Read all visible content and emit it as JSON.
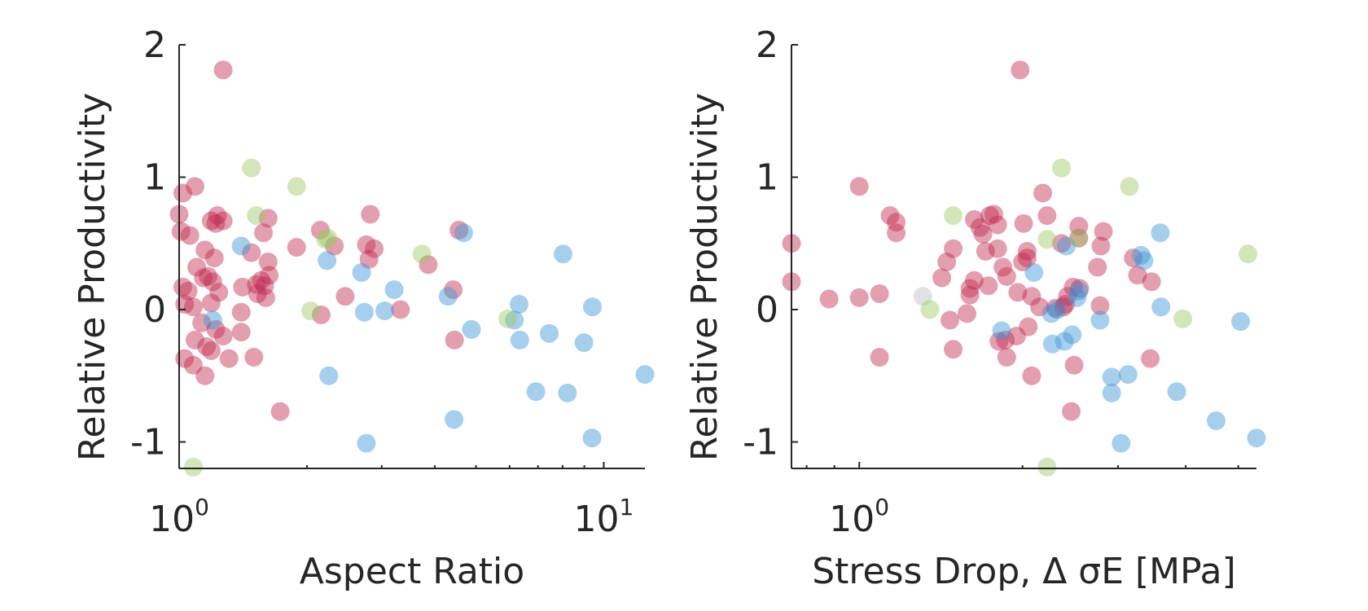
{
  "colors": {
    "red": "#c2294f",
    "blue": "#3a95d6",
    "green": "#9cc866",
    "gray": "#d4d4d4",
    "axis": "#262626"
  },
  "chart_data": [
    {
      "type": "scatter",
      "xscale": "log",
      "xlabel": "Aspect Ratio",
      "ylabel": "Relative Productivity",
      "xlim": [
        1.0,
        12.5
      ],
      "ylim": [
        -1.2,
        2.0
      ],
      "x_ticks": [
        {
          "value": 1,
          "base": "10",
          "exp": "0"
        },
        {
          "value": 10,
          "base": "10",
          "exp": "1"
        }
      ],
      "y_ticks": [
        {
          "value": -1,
          "label": "-1"
        },
        {
          "value": 0,
          "label": "0"
        },
        {
          "value": 1,
          "label": "1"
        },
        {
          "value": 2,
          "label": "2"
        }
      ],
      "series": [
        {
          "color": "red",
          "points": [
            [
              1.27,
              1.81
            ],
            [
              1.0,
              0.72
            ],
            [
              1.01,
              0.59
            ],
            [
              1.06,
              0.56
            ],
            [
              1.02,
              0.88
            ],
            [
              1.09,
              0.93
            ],
            [
              1.15,
              0.45
            ],
            [
              1.21,
              0.39
            ],
            [
              1.27,
              0.67
            ],
            [
              1.22,
              0.65
            ],
            [
              1.23,
              0.71
            ],
            [
              1.19,
              0.67
            ],
            [
              1.02,
              0.17
            ],
            [
              1.05,
              0.14
            ],
            [
              1.1,
              0.32
            ],
            [
              1.14,
              0.24
            ],
            [
              1.17,
              0.25
            ],
            [
              1.2,
              0.21
            ],
            [
              1.24,
              0.13
            ],
            [
              1.03,
              0.04
            ],
            [
              1.08,
              0.02
            ],
            [
              1.19,
              0.05
            ],
            [
              1.13,
              -0.1
            ],
            [
              1.22,
              -0.15
            ],
            [
              1.09,
              -0.23
            ],
            [
              1.16,
              -0.28
            ],
            [
              1.19,
              -0.31
            ],
            [
              1.27,
              -0.2
            ],
            [
              1.31,
              -0.37
            ],
            [
              1.03,
              -0.37
            ],
            [
              1.08,
              -0.42
            ],
            [
              1.15,
              -0.5
            ],
            [
              1.41,
              0.17
            ],
            [
              1.4,
              -0.02
            ],
            [
              1.4,
              -0.17
            ],
            [
              1.48,
              0.43
            ],
            [
              1.52,
              0.19
            ],
            [
              1.56,
              0.22
            ],
            [
              1.59,
              0.18
            ],
            [
              1.53,
              0.12
            ],
            [
              1.6,
              0.09
            ],
            [
              1.63,
              0.26
            ],
            [
              1.62,
              0.36
            ],
            [
              1.58,
              0.58
            ],
            [
              1.62,
              0.69
            ],
            [
              1.5,
              -0.36
            ],
            [
              1.73,
              -0.77
            ],
            [
              1.89,
              0.47
            ],
            [
              2.15,
              0.6
            ],
            [
              2.16,
              -0.04
            ],
            [
              2.32,
              0.48
            ],
            [
              2.46,
              0.1
            ],
            [
              2.76,
              0.49
            ],
            [
              2.8,
              0.38
            ],
            [
              2.88,
              0.46
            ],
            [
              2.82,
              0.72
            ],
            [
              3.32,
              0.0
            ],
            [
              3.86,
              0.34
            ],
            [
              4.42,
              0.15
            ],
            [
              4.56,
              0.6
            ],
            [
              4.45,
              -0.23
            ]
          ]
        },
        {
          "color": "blue",
          "points": [
            [
              1.4,
              0.48
            ],
            [
              2.23,
              0.37
            ],
            [
              1.2,
              -0.08
            ],
            [
              2.25,
              -0.5
            ],
            [
              2.69,
              0.28
            ],
            [
              2.73,
              -0.02
            ],
            [
              2.76,
              -1.01
            ],
            [
              3.05,
              -0.01
            ],
            [
              3.21,
              0.15
            ],
            [
              4.3,
              0.1
            ],
            [
              4.68,
              0.58
            ],
            [
              4.88,
              -0.15
            ],
            [
              4.44,
              -0.83
            ],
            [
              6.16,
              -0.08
            ],
            [
              6.32,
              0.04
            ],
            [
              6.34,
              -0.23
            ],
            [
              6.92,
              -0.62
            ],
            [
              7.44,
              -0.18
            ],
            [
              8.02,
              0.42
            ],
            [
              8.21,
              -0.63
            ],
            [
              8.98,
              -0.25
            ],
            [
              9.4,
              0.02
            ],
            [
              9.38,
              -0.97
            ],
            [
              12.5,
              -0.49
            ]
          ]
        },
        {
          "color": "green",
          "points": [
            [
              1.08,
              -1.19
            ],
            [
              1.48,
              1.07
            ],
            [
              1.52,
              0.71
            ],
            [
              1.89,
              0.93
            ],
            [
              2.21,
              0.53
            ],
            [
              2.24,
              0.54
            ],
            [
              2.04,
              -0.01
            ],
            [
              3.73,
              0.42
            ],
            [
              5.94,
              -0.07
            ]
          ]
        }
      ]
    },
    {
      "type": "scatter",
      "xscale": "log",
      "xlabel": "Stress Drop, Δ σE [MPa]",
      "ylabel": "Relative Productivity",
      "xlim": [
        0.75,
        5.4
      ],
      "ylim": [
        -1.2,
        2.0
      ],
      "x_ticks": [
        {
          "value": 1,
          "base": "10",
          "exp": "0"
        }
      ],
      "y_ticks": [
        {
          "value": -1,
          "label": "-1"
        },
        {
          "value": 0,
          "label": "0"
        },
        {
          "value": 1,
          "label": "1"
        },
        {
          "value": 2,
          "label": "2"
        }
      ],
      "series": [
        {
          "color": "gray",
          "points": [
            [
              1.31,
              0.1
            ]
          ]
        },
        {
          "color": "red",
          "points": [
            [
              1.98,
              1.81
            ],
            [
              0.75,
              0.5
            ],
            [
              0.75,
              0.21
            ],
            [
              0.88,
              0.08
            ],
            [
              1.0,
              0.09
            ],
            [
              1.0,
              0.93
            ],
            [
              1.09,
              0.12
            ],
            [
              1.09,
              -0.36
            ],
            [
              1.14,
              0.71
            ],
            [
              1.17,
              0.66
            ],
            [
              1.17,
              0.58
            ],
            [
              1.42,
              0.24
            ],
            [
              1.45,
              0.36
            ],
            [
              1.47,
              -0.08
            ],
            [
              1.49,
              0.46
            ],
            [
              1.49,
              -0.3
            ],
            [
              1.58,
              -0.03
            ],
            [
              1.6,
              0.16
            ],
            [
              1.6,
              0.11
            ],
            [
              1.63,
              0.68
            ],
            [
              1.63,
              0.22
            ],
            [
              1.67,
              0.62
            ],
            [
              1.69,
              0.57
            ],
            [
              1.71,
              0.44
            ],
            [
              1.73,
              0.18
            ],
            [
              1.74,
              0.71
            ],
            [
              1.77,
              0.72
            ],
            [
              1.8,
              0.64
            ],
            [
              1.8,
              0.46
            ],
            [
              1.81,
              -0.24
            ],
            [
              1.84,
              0.32
            ],
            [
              1.86,
              -0.23
            ],
            [
              1.87,
              0.25
            ],
            [
              1.87,
              -0.36
            ],
            [
              1.95,
              -0.2
            ],
            [
              1.96,
              0.13
            ],
            [
              2.0,
              0.36
            ],
            [
              2.01,
              0.65
            ],
            [
              2.04,
              0.39
            ],
            [
              2.04,
              0.44
            ],
            [
              2.05,
              -0.13
            ],
            [
              2.08,
              -0.5
            ],
            [
              2.08,
              0.1
            ],
            [
              2.15,
              0.02
            ],
            [
              2.18,
              0.88
            ],
            [
              2.22,
              0.71
            ],
            [
              2.3,
              0.01
            ],
            [
              2.36,
              0.5
            ],
            [
              2.38,
              0.02
            ],
            [
              2.4,
              0.04
            ],
            [
              2.42,
              0.1
            ],
            [
              2.46,
              -0.77
            ],
            [
              2.48,
              0.17
            ],
            [
              2.49,
              -0.42
            ],
            [
              2.54,
              0.54
            ],
            [
              2.54,
              0.63
            ],
            [
              2.55,
              0.16
            ],
            [
              2.75,
              0.32
            ],
            [
              2.78,
              0.03
            ],
            [
              2.79,
              0.48
            ],
            [
              2.82,
              0.59
            ],
            [
              3.2,
              0.39
            ],
            [
              3.26,
              0.26
            ],
            [
              3.46,
              0.21
            ],
            [
              3.44,
              -0.37
            ]
          ]
        },
        {
          "color": "blue",
          "points": [
            [
              1.83,
              -0.16
            ],
            [
              2.1,
              0.28
            ],
            [
              2.26,
              -0.03
            ],
            [
              2.27,
              -0.26
            ],
            [
              2.32,
              0.0
            ],
            [
              2.39,
              -0.24
            ],
            [
              2.41,
              0.48
            ],
            [
              2.47,
              -0.19
            ],
            [
              2.52,
              0.09
            ],
            [
              2.54,
              0.14
            ],
            [
              2.78,
              -0.08
            ],
            [
              2.92,
              -0.51
            ],
            [
              2.92,
              -0.63
            ],
            [
              3.04,
              -1.01
            ],
            [
              3.13,
              -0.49
            ],
            [
              3.31,
              0.41
            ],
            [
              3.35,
              0.37
            ],
            [
              3.59,
              0.58
            ],
            [
              3.6,
              0.02
            ],
            [
              3.85,
              -0.62
            ],
            [
              4.55,
              -0.84
            ],
            [
              5.05,
              -0.09
            ],
            [
              5.4,
              -0.97
            ]
          ]
        },
        {
          "color": "green",
          "points": [
            [
              1.35,
              0.0
            ],
            [
              1.49,
              0.71
            ],
            [
              2.22,
              0.53
            ],
            [
              2.22,
              -1.19
            ],
            [
              2.36,
              1.07
            ],
            [
              2.54,
              0.54
            ],
            [
              3.15,
              0.93
            ],
            [
              3.95,
              -0.07
            ],
            [
              5.21,
              0.42
            ]
          ]
        }
      ]
    }
  ]
}
